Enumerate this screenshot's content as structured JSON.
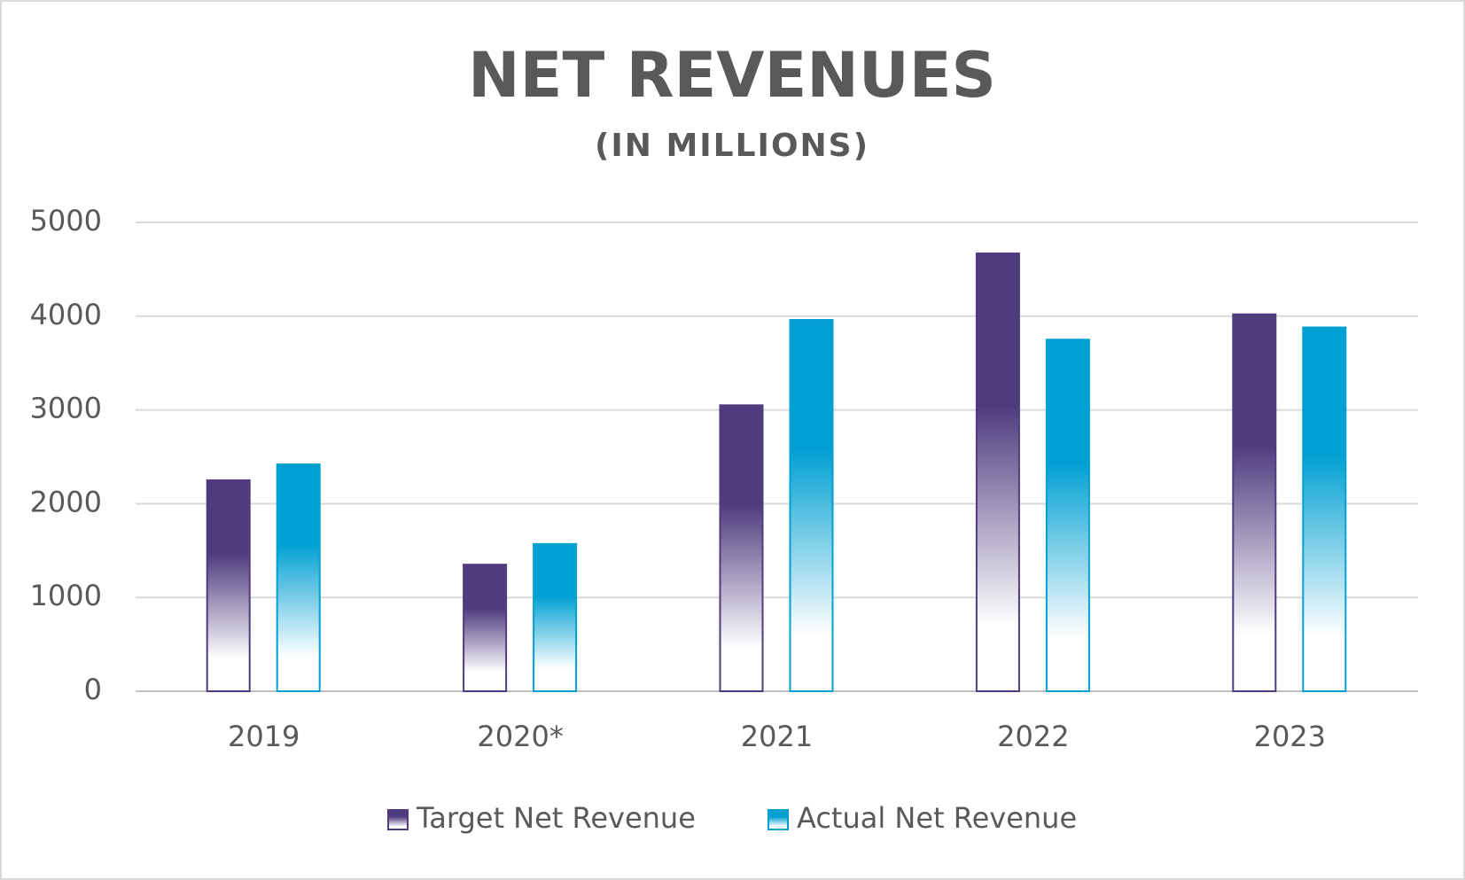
{
  "chart_data": {
    "type": "bar",
    "title": "NET REVENUES",
    "subtitle": "(IN MILLIONS)",
    "categories": [
      "2019",
      "2020*",
      "2021",
      "2022",
      "2023"
    ],
    "series": [
      {
        "name": "Target Net Revenue",
        "color": "#4f3c7f",
        "values": [
          2250,
          1350,
          3050,
          4670,
          4020
        ]
      },
      {
        "name": "Actual Net Revenue",
        "color": "#00a0d2",
        "values": [
          2420,
          1570,
          3960,
          3750,
          3880
        ]
      }
    ],
    "ylim": [
      0,
      5000
    ],
    "yticks": [
      0,
      1000,
      2000,
      3000,
      4000,
      5000
    ],
    "grid": true,
    "legend": "bottom"
  }
}
